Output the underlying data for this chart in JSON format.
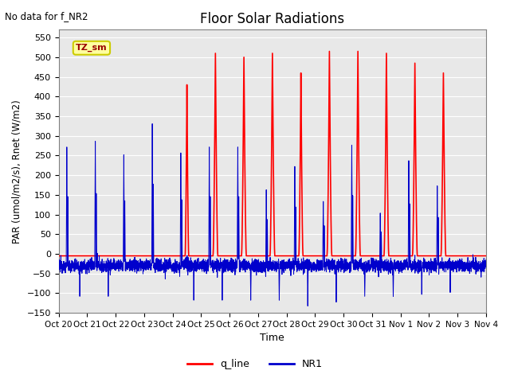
{
  "title": "Floor Solar Radiations",
  "top_left_text": "No data for f_NR2",
  "legend_box_label": "TZ_sm",
  "xlabel": "Time",
  "ylabel": "PAR (umol/m2/s), Rnet (W/m2)",
  "ylim": [
    -150,
    570
  ],
  "yticks": [
    -150,
    -100,
    -50,
    0,
    50,
    100,
    150,
    200,
    250,
    300,
    350,
    400,
    450,
    500,
    550
  ],
  "xtick_labels": [
    "Oct 20",
    "Oct 21",
    "Oct 22",
    "Oct 23",
    "Oct 24",
    "Oct 25",
    "Oct 26",
    "Oct 27",
    "Oct 28",
    "Oct 29",
    "Oct 30",
    "Oct 31",
    "Nov 1",
    "Nov 2",
    "Nov 3",
    "Nov 4"
  ],
  "q_line_color": "#FF0000",
  "nr1_color": "#0000CC",
  "legend_labels": [
    "q_line",
    "NR1"
  ],
  "background_color": "#E8E8E8",
  "figure_color": "#FFFFFF",
  "n_days": 15,
  "points_per_day": 288,
  "q_line_night_val": -5.0,
  "q_line_peaks": [
    0,
    0,
    0,
    0,
    430,
    510,
    500,
    510,
    460,
    515,
    515,
    510,
    485,
    460,
    0
  ],
  "q_peak_width": [
    0,
    0,
    0,
    0,
    0.06,
    0.08,
    0.08,
    0.08,
    0.07,
    0.08,
    0.08,
    0.08,
    0.08,
    0.08,
    0
  ],
  "q_peak_center": [
    0.5,
    0.5,
    0.5,
    0.5,
    0.5,
    0.5,
    0.5,
    0.5,
    0.5,
    0.5,
    0.5,
    0.5,
    0.5,
    0.5,
    0.5
  ],
  "nr1_baseline": [
    -30,
    -30,
    -30,
    -30,
    -30,
    -30,
    -30,
    -30,
    -30,
    -30,
    -30,
    -30,
    -30,
    -30,
    -30
  ],
  "nr1_pos_peaks": [
    275,
    290,
    255,
    335,
    260,
    275,
    275,
    165,
    225,
    135,
    280,
    105,
    240,
    175,
    0
  ],
  "nr1_neg_spikes": [
    -110,
    -110,
    -50,
    -65,
    -120,
    -120,
    -120,
    -120,
    -135,
    -125,
    -110,
    -110,
    -105,
    -100,
    -80
  ],
  "nr1_noise_amp": 8.0
}
